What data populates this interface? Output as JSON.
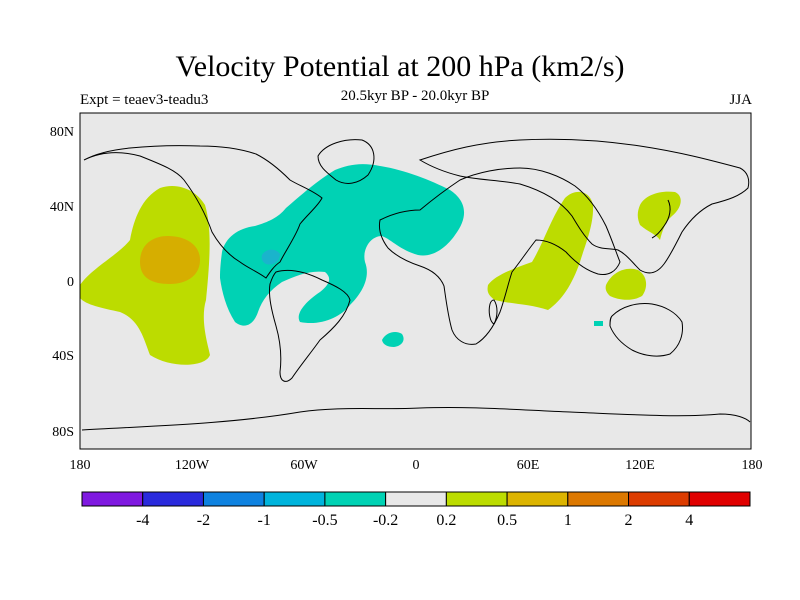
{
  "title": "Velocity Potential at 200 hPa (km2/s)",
  "subtitle": "20.5kyr BP - 20.0kyr BP",
  "left_label": "Expt = teaev3-teadu3",
  "right_label": "JJA",
  "lat_ticks": [
    "80N",
    "40N",
    "0",
    "40S",
    "80S"
  ],
  "lon_ticks": [
    "180",
    "120W",
    "60W",
    "0",
    "60E",
    "120E",
    "180"
  ],
  "colorbar": {
    "labels": [
      "-4",
      "-2",
      "-1",
      "-0.5",
      "-0.2",
      "0.2",
      "0.5",
      "1",
      "2",
      "4"
    ],
    "colors": [
      "#7f19e0",
      "#2a2adc",
      "#0e82e0",
      "#00b4dc",
      "#00d2b4",
      "#e8e8e8",
      "#bcdc00",
      "#dcb400",
      "#dc7800",
      "#dc3c00",
      "#e00000"
    ]
  },
  "colors": {
    "ocean_land_bg": "#e8e8e8",
    "positive_0_2": "#bcdc00",
    "positive_0_5": "#d6ae00",
    "negative_0_2": "#00d2b4",
    "negative_0_5": "#1ab4cc"
  }
}
